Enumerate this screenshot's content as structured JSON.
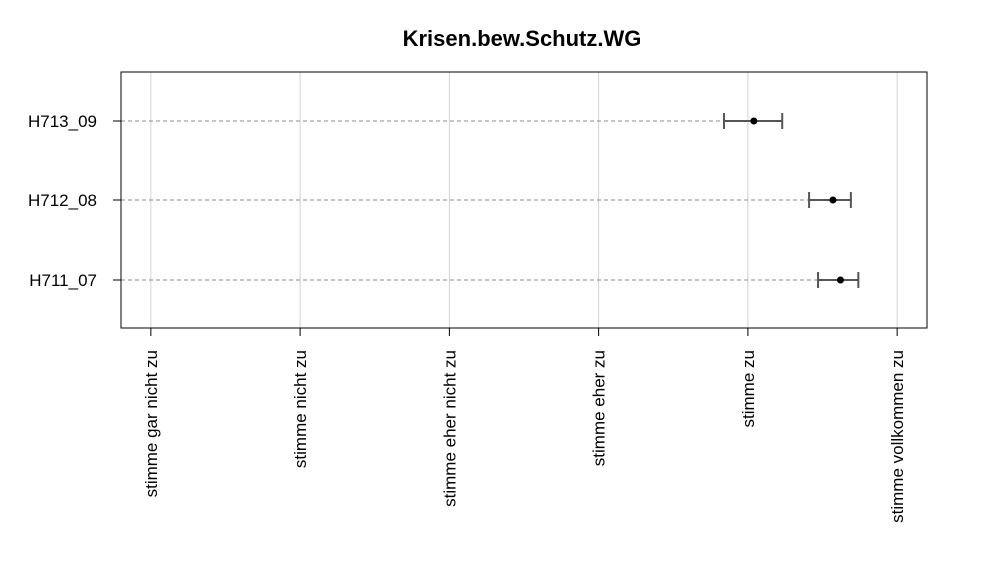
{
  "chart_data": {
    "type": "dot-errorbar",
    "title": "Krisen.bew.Schutz.WG",
    "x_ticks": [
      "stimme gar nicht zu",
      "stimme nicht zu",
      "stimme eher nicht zu",
      "stimme eher zu",
      "stimme zu",
      "stimme vollkommen zu"
    ],
    "x_tick_values": [
      1,
      2,
      3,
      4,
      5,
      6
    ],
    "xlim": [
      0.8,
      6.2
    ],
    "grid": true,
    "items": [
      {
        "label": "H713_09",
        "mean": 5.04,
        "lower": 4.84,
        "upper": 5.23
      },
      {
        "label": "H712_08",
        "mean": 5.57,
        "lower": 5.41,
        "upper": 5.69
      },
      {
        "label": "H711_07",
        "mean": 5.62,
        "lower": 5.47,
        "upper": 5.74
      }
    ]
  }
}
